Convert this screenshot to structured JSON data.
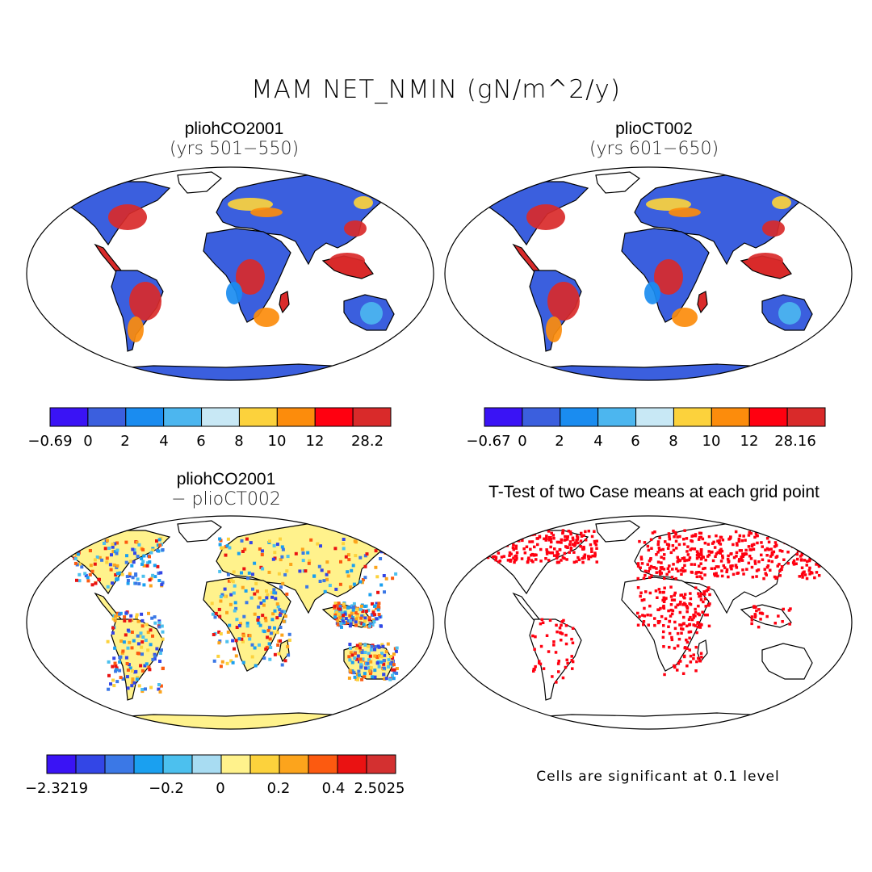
{
  "title": "MAM NET_NMIN (gN/m^2/y)",
  "note": "Cells are significant at 0.1 level",
  "chart_data": [
    {
      "type": "heatmap",
      "panel": "top-left",
      "title": "pliohCO2001",
      "subtitle": "(yrs 501−550)",
      "colorbar": {
        "colors": [
          "#3a13f5",
          "#3b5fde",
          "#1a8cf0",
          "#4cb6ef",
          "#c8e8f5",
          "#fcd23c",
          "#fc8c0c",
          "#ff0010",
          "#d92a2a"
        ],
        "tick_labels": [
          "−0.69",
          "0",
          "2",
          "4",
          "6",
          "8",
          "10",
          "12",
          "28.2"
        ],
        "range": [
          -0.69,
          28.2
        ]
      }
    },
    {
      "type": "heatmap",
      "panel": "top-right",
      "title": "plioCT002",
      "subtitle": "(yrs 601−650)",
      "colorbar": {
        "colors": [
          "#3a13f5",
          "#3b5fde",
          "#1a8cf0",
          "#4cb6ef",
          "#c8e8f5",
          "#fcd23c",
          "#fc8c0c",
          "#ff0010",
          "#d92a2a"
        ],
        "tick_labels": [
          "−0.67",
          "0",
          "2",
          "4",
          "6",
          "8",
          "10",
          "12",
          "28.16"
        ],
        "range": [
          -0.67,
          28.16
        ]
      }
    },
    {
      "type": "heatmap",
      "panel": "bottom-left",
      "title": "pliohCO2001",
      "subtitle": "− plioCT002",
      "colorbar": {
        "colors": [
          "#3a13f5",
          "#3346e6",
          "#3b78e6",
          "#1aa0f0",
          "#4cc0ee",
          "#a8dcf2",
          "#fff28c",
          "#fcd23c",
          "#fca41c",
          "#fc5a10",
          "#ea1212",
          "#d33030"
        ],
        "tick_labels": [
          "−2.3219",
          "−0.2",
          "0",
          "0.2",
          "0.4",
          "2.5025"
        ],
        "range": [
          -2.3219,
          2.5025
        ]
      }
    },
    {
      "type": "heatmap",
      "panel": "bottom-right",
      "title": "T-Test of two Case means at each grid point"
    }
  ]
}
